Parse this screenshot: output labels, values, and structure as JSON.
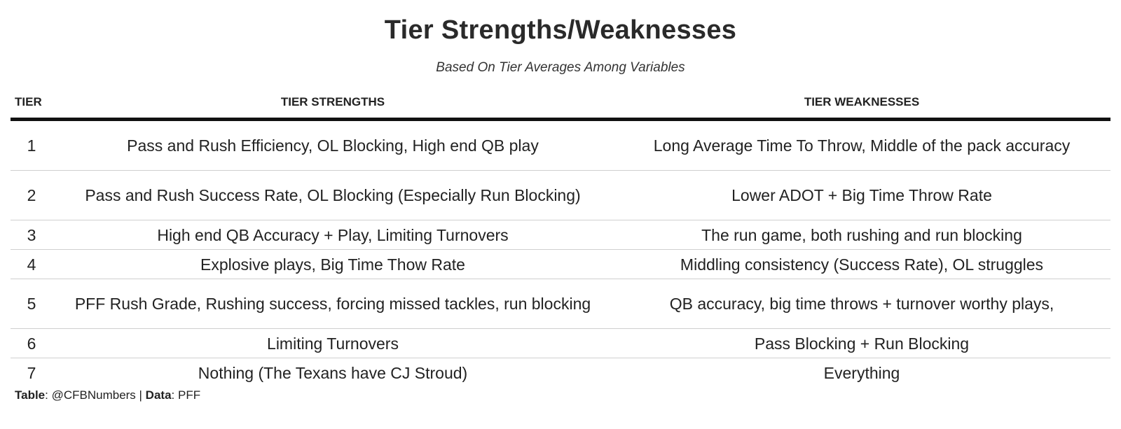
{
  "title": "Tier Strengths/Weaknesses",
  "subtitle": "Based On Tier Averages Among Variables",
  "columns": {
    "tier": "TIER",
    "strengths": "TIER STRENGTHS",
    "weaknesses": "TIER WEAKNESSES"
  },
  "rows": [
    {
      "tier": "1",
      "strengths": "Pass and Rush Efficiency, OL Blocking, High end QB play",
      "weaknesses": "Long Average Time To Throw, Middle of the pack accuracy"
    },
    {
      "tier": "2",
      "strengths": "Pass and Rush Success Rate, OL Blocking (Especially Run Blocking)",
      "weaknesses": "Lower ADOT + Big Time Throw Rate"
    },
    {
      "tier": "3",
      "strengths": "High end QB Accuracy + Play, Limiting Turnovers",
      "weaknesses": "The run game, both rushing and run blocking"
    },
    {
      "tier": "4",
      "strengths": "Explosive plays, Big Time Thow Rate",
      "weaknesses": "Middling consistency (Success Rate), OL struggles"
    },
    {
      "tier": "5",
      "strengths": "PFF Rush Grade, Rushing success, forcing missed tackles, run blocking",
      "weaknesses": "QB accuracy, big time throws + turnover worthy plays,"
    },
    {
      "tier": "6",
      "strengths": "Limiting Turnovers",
      "weaknesses": "Pass Blocking + Run Blocking"
    },
    {
      "tier": "7",
      "strengths": "Nothing (The Texans have CJ Stroud)",
      "weaknesses": "Everything"
    }
  ],
  "source": {
    "table_label": "Table",
    "table_value": ": @CFBNumbers | ",
    "data_label": "Data",
    "data_value": ": PFF"
  }
}
